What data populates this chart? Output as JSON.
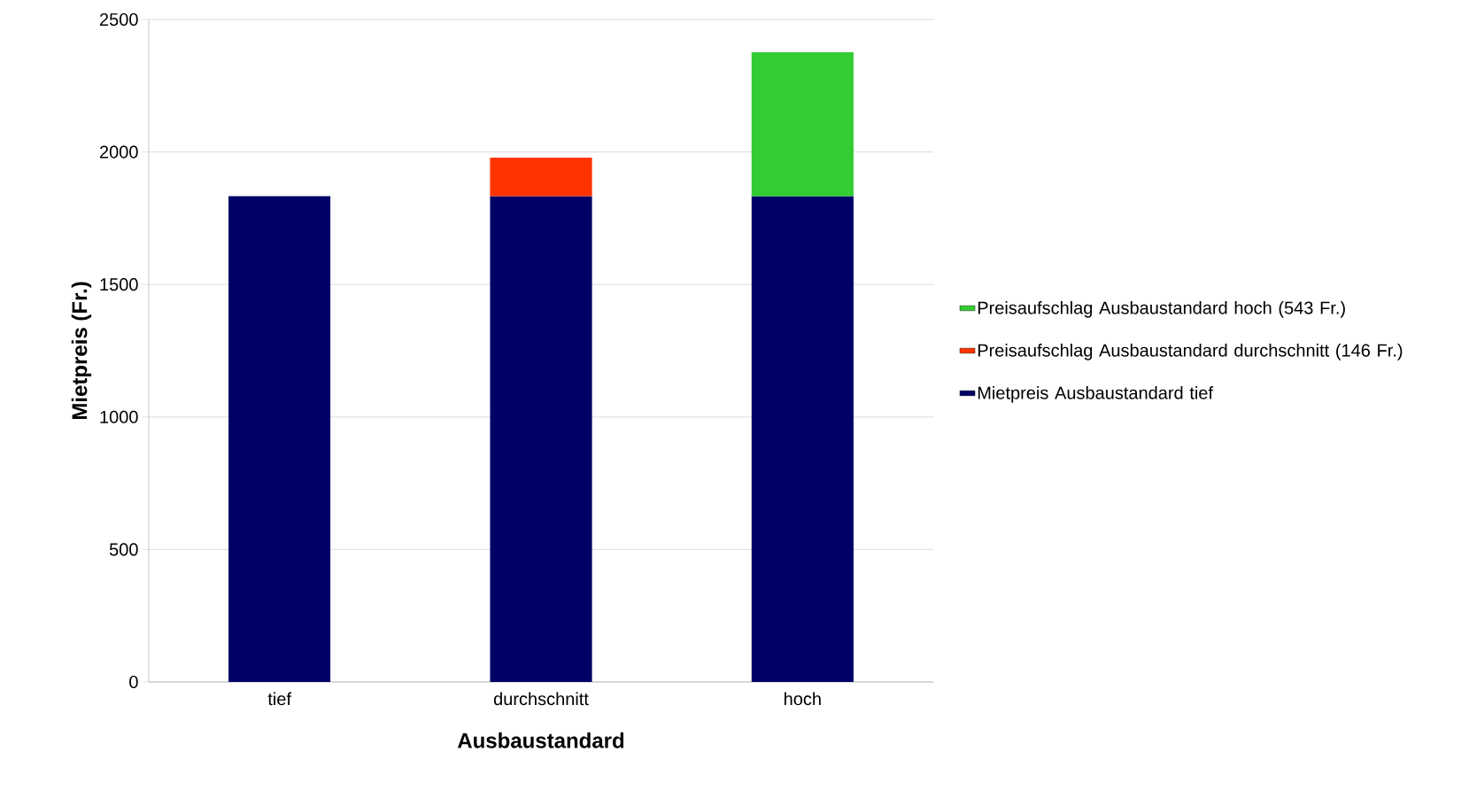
{
  "chart_data": {
    "type": "bar",
    "stacked": true,
    "xlabel": "Ausbaustandard",
    "ylabel": "Mietpreis (Fr.)",
    "categories": [
      "tief",
      "durchschnitt",
      "hoch"
    ],
    "series": [
      {
        "name": "Mietpreis Ausbaustandard tief",
        "color": "#000066",
        "values": [
          1833,
          1833,
          1833
        ]
      },
      {
        "name": "Preisaufschlag Ausbaustandard durchschnitt (146 Fr.)",
        "color": "#ff3300",
        "values": [
          null,
          146,
          null
        ]
      },
      {
        "name": "Preisaufschlag Ausbaustandard hoch (543 Fr.)",
        "color": "#33cc33",
        "values": [
          null,
          null,
          543
        ]
      }
    ],
    "ylim": [
      0,
      2500
    ],
    "yticks": [
      0,
      500,
      1000,
      1500,
      2000,
      2500
    ],
    "grid": "y",
    "legend": "right"
  }
}
